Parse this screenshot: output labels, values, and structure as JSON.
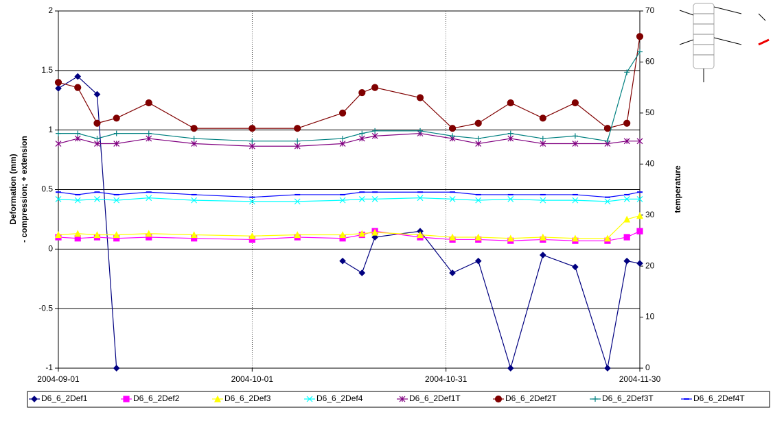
{
  "chart_data": {
    "type": "line",
    "x": [
      "2004-09-01",
      "2004-09-04",
      "2004-09-07",
      "2004-09-10",
      "2004-09-15",
      "2004-09-22",
      "2004-10-01",
      "2004-10-08",
      "2004-10-15",
      "2004-10-18",
      "2004-10-20",
      "2004-10-27",
      "2004-11-01",
      "2004-11-05",
      "2004-11-10",
      "2004-11-15",
      "2004-11-20",
      "2004-11-25",
      "2004-11-28",
      "2004-11-30"
    ],
    "xlim": [
      "2004-09-01",
      "2004-11-30"
    ],
    "xticks": [
      "2004-09-01",
      "2004-10-01",
      "2004-10-31",
      "2004-11-30"
    ],
    "ylabel": [
      "Deformation (mm)",
      "- compression; + extension"
    ],
    "ylim": [
      -1,
      2
    ],
    "yticks": [
      -1,
      -0.5,
      0,
      0.5,
      1,
      1.5,
      2
    ],
    "y2label": "temperature",
    "y2lim": [
      0,
      70
    ],
    "y2ticks": [
      0,
      10,
      20,
      30,
      40,
      50,
      60,
      70
    ],
    "grid": true,
    "legend": "bottom",
    "series": [
      {
        "name": "D6_6_2Def1",
        "color": "#000080",
        "marker": "diamond",
        "values": [
          1.35,
          1.45,
          1.3,
          -1,
          null,
          null,
          null,
          null,
          -0.1,
          -0.2,
          0.1,
          0.15,
          -0.2,
          -0.1,
          -1,
          -0.05,
          -0.15,
          -1,
          -0.1,
          -0.12
        ]
      },
      {
        "name": "D6_6_2Def2",
        "color": "#ff00ff",
        "marker": "square",
        "values": [
          0.1,
          0.09,
          0.1,
          0.09,
          0.1,
          0.09,
          0.08,
          0.1,
          0.09,
          0.12,
          0.15,
          0.1,
          0.08,
          0.08,
          0.07,
          0.08,
          0.07,
          0.07,
          0.1,
          0.15
        ]
      },
      {
        "name": "D6_6_2Def3",
        "color": "#ffff00",
        "marker": "triangle",
        "values": [
          0.12,
          0.13,
          0.12,
          0.12,
          0.13,
          0.12,
          0.11,
          0.12,
          0.12,
          0.13,
          0.14,
          0.12,
          0.1,
          0.1,
          0.09,
          0.1,
          0.09,
          0.09,
          0.25,
          0.28
        ]
      },
      {
        "name": "D6_6_2Def4",
        "color": "#00ffff",
        "marker": "x",
        "values": [
          0.42,
          0.41,
          0.42,
          0.41,
          0.43,
          0.41,
          0.4,
          0.4,
          0.41,
          0.42,
          0.42,
          0.43,
          0.42,
          0.41,
          0.42,
          0.41,
          0.41,
          0.4,
          0.42,
          0.42
        ]
      },
      {
        "name": "D6_6_2Def1T",
        "color": "#800080",
        "marker": "star",
        "axis": "y2",
        "values": [
          44,
          45,
          44,
          44,
          45,
          44,
          43.5,
          43.5,
          44,
          45,
          45.5,
          46,
          45,
          44,
          45,
          44,
          44,
          44,
          44.5,
          44.5
        ]
      },
      {
        "name": "D6_6_2Def2T",
        "color": "#800000",
        "marker": "circle",
        "axis": "y2",
        "values": [
          56,
          55,
          48,
          49,
          52,
          47,
          47,
          47,
          50,
          54,
          55,
          53,
          47,
          48,
          52,
          49,
          52,
          47,
          48,
          65
        ]
      },
      {
        "name": "D6_6_2Def3T",
        "color": "#008080",
        "marker": "plus",
        "axis": "y2",
        "values": [
          46,
          46,
          45,
          46,
          46,
          45,
          44.5,
          44.5,
          45,
          46,
          46.5,
          46.5,
          45.5,
          45,
          46,
          45,
          45.5,
          44.5,
          58,
          62
        ]
      },
      {
        "name": "D6_6_2Def4T",
        "color": "#0000ff",
        "marker": "dash",
        "axis": "y2",
        "values": [
          34.5,
          34,
          34.5,
          34,
          34.5,
          34,
          33.5,
          34,
          34,
          34.5,
          34.5,
          34.5,
          34.5,
          34,
          34,
          34,
          34,
          33.5,
          34,
          34.5
        ]
      }
    ]
  }
}
